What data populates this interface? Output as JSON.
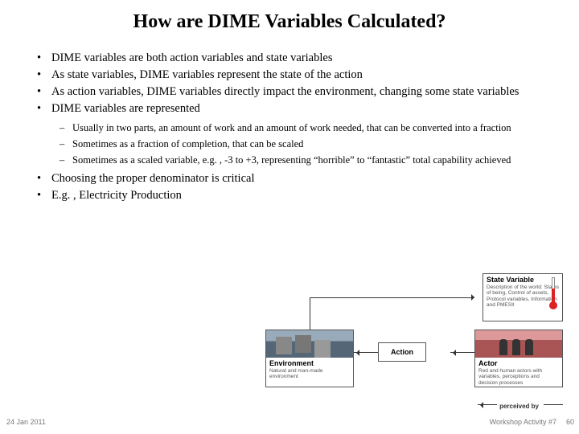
{
  "title": "How are DIME Variables Calculated?",
  "bullets": [
    "DIME variables are both action variables and state variables",
    "As state variables, DIME variables represent the state of the action",
    "As action variables, DIME variables directly impact the environment, changing some state variables",
    "DIME variables are represented"
  ],
  "subbullets": [
    "Usually in two parts, an amount of work and an amount of work needed, that can be converted into a fraction",
    "Sometimes as a fraction of completion, that can be scaled",
    "Sometimes as a scaled variable, e.g. , -3 to +3, representing “horrible” to “fantastic” total capability achieved"
  ],
  "bullets2": [
    "Choosing the proper denominator is critical",
    "E.g. , Electricity Production"
  ],
  "footer": {
    "date": "24 Jan 2011",
    "activity": "Workshop Activity #7",
    "num": "60"
  },
  "diagram": {
    "env": {
      "label": "Environment",
      "desc": "Natural and man-made environment"
    },
    "action": {
      "label": "Action"
    },
    "actor": {
      "label": "Actor",
      "desc": "Red and human actors with variables, perceptions and decision processes"
    },
    "state": {
      "label": "State Variable",
      "desc": "Description of the world: States of being, Control of assets, Protocol variables, Information and PMESII"
    },
    "perceived": "perceived by"
  }
}
